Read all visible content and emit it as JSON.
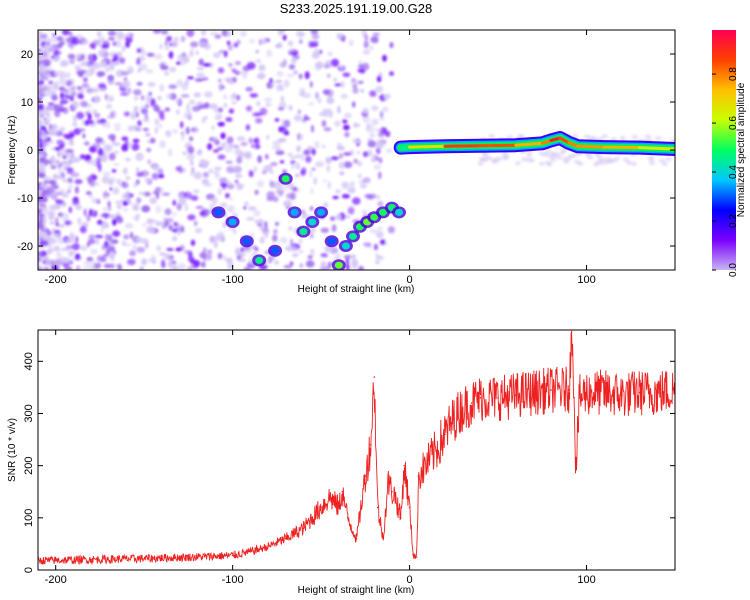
{
  "figure": {
    "title": "S233.2025.191.19.00.G28"
  },
  "chart_data": [
    {
      "type": "heatmap",
      "xlabel": "Height of straight line (km)",
      "ylabel": "Frequency (Hz)",
      "xlim": [
        -210,
        150
      ],
      "ylim": [
        -25,
        25
      ],
      "xticks": [
        -200,
        -100,
        0,
        100
      ],
      "yticks": [
        -20,
        -10,
        0,
        10,
        20
      ],
      "colorbar": {
        "label": "Normalized spectral amplitude",
        "range": [
          0,
          0.98
        ],
        "ticks": [
          "0.0",
          "0.2",
          "0.4",
          "0.6",
          "0.8"
        ],
        "tick_values": [
          0,
          0.2,
          0.4,
          0.6,
          0.8
        ],
        "colormap": [
          "#c8b4f0",
          "#7a00ff",
          "#0000ff",
          "#00c8ff",
          "#00ff60",
          "#c8ff00",
          "#ffc000",
          "#ff4000",
          "#ff0050"
        ]
      },
      "features": {
        "carrier_ridge": {
          "x": [
            -5,
            0,
            20,
            40,
            60,
            75,
            80,
            85,
            90,
            95,
            110,
            130,
            150
          ],
          "freq": [
            0.5,
            0.6,
            0.8,
            0.9,
            1.0,
            1.4,
            2.0,
            2.5,
            1.5,
            0.8,
            0.6,
            0.5,
            0.2
          ],
          "amplitude": [
            0.4,
            0.5,
            0.85,
            0.9,
            0.8,
            0.7,
            0.9,
            0.95,
            0.75,
            0.85,
            0.7,
            0.8,
            0.5
          ]
        },
        "low_altitude_scatter": {
          "x": [
            -108,
            -100,
            -92,
            -85,
            -76,
            -70,
            -65,
            -60,
            -55,
            -50,
            -44,
            -40,
            -36,
            -32,
            -28,
            -24,
            -20,
            -15,
            -10,
            -6
          ],
          "freq": [
            -13,
            -15,
            -19,
            -23,
            -21,
            -6,
            -13,
            -17,
            -15,
            -13,
            -19,
            -24,
            -20,
            -18,
            -16,
            -15,
            -14,
            -13,
            -12,
            -13
          ],
          "amplitude": [
            0.3,
            0.35,
            0.3,
            0.45,
            0.3,
            0.5,
            0.35,
            0.45,
            0.4,
            0.35,
            0.3,
            0.55,
            0.4,
            0.45,
            0.5,
            0.55,
            0.52,
            0.5,
            0.48,
            0.4
          ]
        }
      }
    },
    {
      "type": "line",
      "xlabel": "Height of straight line (km)",
      "ylabel": "SNR (10 * v/v)",
      "xlim": [
        -210,
        150
      ],
      "ylim": [
        0,
        460
      ],
      "xticks": [
        -200,
        -100,
        0,
        100
      ],
      "yticks": [
        0,
        100,
        200,
        300,
        400
      ],
      "color": "#ee2020",
      "series": [
        {
          "x": [
            -210,
            -180,
            -150,
            -120,
            -100,
            -90,
            -80,
            -70,
            -60,
            -55,
            -50,
            -45,
            -40,
            -38,
            -35,
            -30,
            -25,
            -22,
            -20,
            -18,
            -15,
            -12,
            -10,
            -8,
            -5,
            -3,
            0,
            2,
            4,
            5,
            7,
            10,
            15,
            20,
            25,
            30,
            35,
            40,
            50,
            60,
            70,
            80,
            90,
            92,
            93,
            94,
            96,
            100,
            110,
            120,
            130,
            140,
            150
          ],
          "y": [
            18,
            20,
            22,
            25,
            28,
            35,
            45,
            60,
            80,
            100,
            120,
            140,
            120,
            150,
            100,
            60,
            180,
            240,
            370,
            120,
            60,
            170,
            150,
            140,
            100,
            200,
            120,
            30,
            25,
            180,
            190,
            205,
            230,
            260,
            290,
            310,
            320,
            330,
            330,
            335,
            340,
            345,
            345,
            460,
            330,
            195,
            330,
            340,
            340,
            335,
            340,
            340,
            345
          ]
        }
      ]
    }
  ]
}
